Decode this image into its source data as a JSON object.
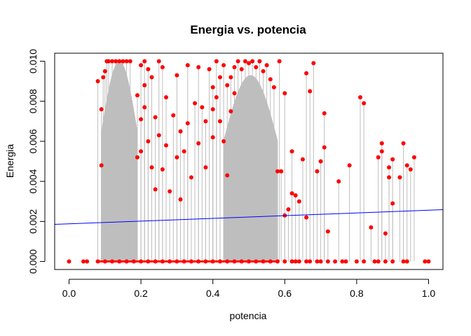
{
  "chart_data": {
    "type": "scatter",
    "title": "Energia vs. potencia",
    "xlabel": "potencia",
    "ylabel": "Energia",
    "xlim": [
      -0.04,
      1.04
    ],
    "ylim": [
      -0.0004,
      0.0104
    ],
    "xticks": [
      "0.0",
      "0.2",
      "0.4",
      "0.6",
      "0.8",
      "1.0"
    ],
    "xtick_values": [
      0.0,
      0.2,
      0.4,
      0.6,
      0.8,
      1.0
    ],
    "yticks": [
      "0.000",
      "0.002",
      "0.004",
      "0.006",
      "0.008",
      "0.010"
    ],
    "ytick_values": [
      0.0,
      0.002,
      0.004,
      0.006,
      0.008,
      0.01
    ],
    "grid": false,
    "colors": {
      "points": "#ff0000",
      "stems": "#bebebe",
      "fit": "#0000ff"
    },
    "regression_line": {
      "intercept": 0.00188,
      "slope": 0.00068
    },
    "dense_regions": [
      {
        "x_from": 0.09,
        "x_to": 0.19,
        "y_to": 0.01
      },
      {
        "x_from": 0.43,
        "x_to": 0.58,
        "y_to": 0.0093
      }
    ],
    "points": [
      [
        0.0,
        0.0
      ],
      [
        0.04,
        0.0
      ],
      [
        0.05,
        0.0
      ],
      [
        0.08,
        0.0
      ],
      [
        0.08,
        0.009
      ],
      [
        0.09,
        0.0048
      ],
      [
        0.09,
        0.0076
      ],
      [
        0.095,
        0.0092
      ],
      [
        0.1,
        0.0095
      ],
      [
        0.105,
        0.01
      ],
      [
        0.11,
        0.01
      ],
      [
        0.12,
        0.01
      ],
      [
        0.13,
        0.01
      ],
      [
        0.14,
        0.01
      ],
      [
        0.15,
        0.01
      ],
      [
        0.16,
        0.01
      ],
      [
        0.17,
        0.01
      ],
      [
        0.19,
        0.0083
      ],
      [
        0.19,
        0.0052
      ],
      [
        0.2,
        0.0098
      ],
      [
        0.2,
        0.0071
      ],
      [
        0.2,
        0.0055
      ],
      [
        0.21,
        0.01
      ],
      [
        0.21,
        0.0088
      ],
      [
        0.21,
        0.0077
      ],
      [
        0.22,
        0.0096
      ],
      [
        0.22,
        0.006
      ],
      [
        0.23,
        0.0092
      ],
      [
        0.23,
        0.0047
      ],
      [
        0.24,
        0.0072
      ],
      [
        0.24,
        0.0036
      ],
      [
        0.25,
        0.01
      ],
      [
        0.25,
        0.0063
      ],
      [
        0.26,
        0.0097
      ],
      [
        0.26,
        0.0046
      ],
      [
        0.27,
        0.0058
      ],
      [
        0.27,
        0.0082
      ],
      [
        0.28,
        0.0035
      ],
      [
        0.29,
        0.0073
      ],
      [
        0.3,
        0.0093
      ],
      [
        0.3,
        0.0052
      ],
      [
        0.31,
        0.0065
      ],
      [
        0.31,
        0.0031
      ],
      [
        0.32,
        0.0055
      ],
      [
        0.33,
        0.0098
      ],
      [
        0.33,
        0.0069
      ],
      [
        0.34,
        0.0042
      ],
      [
        0.35,
        0.0079
      ],
      [
        0.36,
        0.0097
      ],
      [
        0.36,
        0.0059
      ],
      [
        0.37,
        0.0077
      ],
      [
        0.38,
        0.007
      ],
      [
        0.38,
        0.0047
      ],
      [
        0.39,
        0.0096
      ],
      [
        0.4,
        0.0087
      ],
      [
        0.4,
        0.0076
      ],
      [
        0.4,
        0.0062
      ],
      [
        0.41,
        0.01
      ],
      [
        0.41,
        0.0082
      ],
      [
        0.42,
        0.0092
      ],
      [
        0.42,
        0.007
      ],
      [
        0.43,
        0.0098
      ],
      [
        0.43,
        0.006
      ],
      [
        0.44,
        0.0088
      ],
      [
        0.44,
        0.0043
      ],
      [
        0.45,
        0.0092
      ],
      [
        0.45,
        0.0075
      ],
      [
        0.46,
        0.0097
      ],
      [
        0.46,
        0.0084
      ],
      [
        0.47,
        0.01
      ],
      [
        0.48,
        0.0096
      ],
      [
        0.49,
        0.01
      ],
      [
        0.5,
        0.0099
      ],
      [
        0.51,
        0.01
      ],
      [
        0.52,
        0.0097
      ],
      [
        0.53,
        0.01
      ],
      [
        0.54,
        0.0095
      ],
      [
        0.55,
        0.0098
      ],
      [
        0.56,
        0.0091
      ],
      [
        0.57,
        0.0087
      ],
      [
        0.58,
        0.0045
      ],
      [
        0.585,
        0.01
      ],
      [
        0.59,
        0.0045
      ],
      [
        0.6,
        0.0084
      ],
      [
        0.6,
        0.0023
      ],
      [
        0.61,
        0.0026
      ],
      [
        0.62,
        0.0034
      ],
      [
        0.62,
        0.0055
      ],
      [
        0.63,
        0.0033
      ],
      [
        0.64,
        0.003
      ],
      [
        0.65,
        0.0051
      ],
      [
        0.66,
        0.0094
      ],
      [
        0.66,
        0.0022
      ],
      [
        0.67,
        0.0085
      ],
      [
        0.68,
        0.0099
      ],
      [
        0.69,
        0.0045
      ],
      [
        0.7,
        0.005
      ],
      [
        0.71,
        0.0057
      ],
      [
        0.71,
        0.0074
      ],
      [
        0.72,
        0.0015
      ],
      [
        0.75,
        0.004
      ],
      [
        0.78,
        0.0048
      ],
      [
        0.81,
        0.0082
      ],
      [
        0.82,
        0.0079
      ],
      [
        0.84,
        0.0017
      ],
      [
        0.86,
        0.0052
      ],
      [
        0.87,
        0.0059
      ],
      [
        0.87,
        0.0055
      ],
      [
        0.88,
        0.0014
      ],
      [
        0.89,
        0.0047
      ],
      [
        0.89,
        0.0042
      ],
      [
        0.9,
        0.0051
      ],
      [
        0.9,
        0.0029
      ],
      [
        0.92,
        0.0042
      ],
      [
        0.93,
        0.0059
      ],
      [
        0.94,
        0.0048
      ],
      [
        0.95,
        0.0046
      ],
      [
        0.96,
        0.0052
      ],
      [
        0.99,
        0.0
      ],
      [
        1.0,
        0.0
      ],
      [
        0.1,
        0.0
      ],
      [
        0.12,
        0.0
      ],
      [
        0.14,
        0.0
      ],
      [
        0.16,
        0.0
      ],
      [
        0.18,
        0.0
      ],
      [
        0.2,
        0.0
      ],
      [
        0.22,
        0.0
      ],
      [
        0.24,
        0.0
      ],
      [
        0.26,
        0.0
      ],
      [
        0.28,
        0.0
      ],
      [
        0.3,
        0.0
      ],
      [
        0.32,
        0.0
      ],
      [
        0.34,
        0.0
      ],
      [
        0.36,
        0.0
      ],
      [
        0.38,
        0.0
      ],
      [
        0.4,
        0.0
      ],
      [
        0.42,
        0.0
      ],
      [
        0.44,
        0.0
      ],
      [
        0.46,
        0.0
      ],
      [
        0.48,
        0.0
      ],
      [
        0.5,
        0.0
      ],
      [
        0.52,
        0.0
      ],
      [
        0.54,
        0.0
      ],
      [
        0.56,
        0.0
      ],
      [
        0.58,
        0.0
      ],
      [
        0.6,
        0.0
      ],
      [
        0.62,
        0.0
      ],
      [
        0.63,
        0.0
      ],
      [
        0.64,
        0.0
      ],
      [
        0.66,
        0.0
      ],
      [
        0.67,
        0.0
      ],
      [
        0.69,
        0.0
      ],
      [
        0.7,
        0.0
      ],
      [
        0.72,
        0.0
      ],
      [
        0.74,
        0.0
      ],
      [
        0.76,
        0.0
      ],
      [
        0.77,
        0.0
      ],
      [
        0.8,
        0.0
      ],
      [
        0.82,
        0.0
      ],
      [
        0.85,
        0.0
      ],
      [
        0.86,
        0.0
      ],
      [
        0.88,
        0.0
      ],
      [
        0.9,
        0.0
      ],
      [
        0.93,
        0.0
      ],
      [
        0.94,
        0.0
      ]
    ]
  }
}
